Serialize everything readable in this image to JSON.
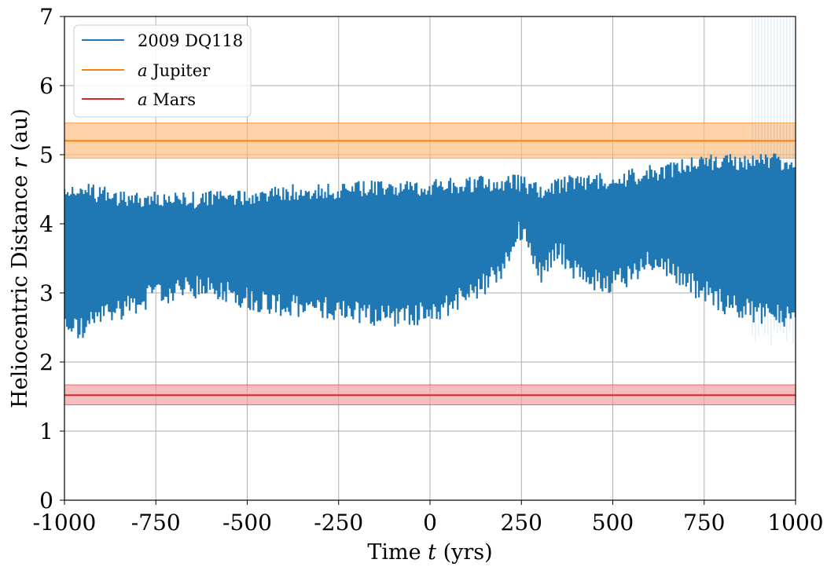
{
  "chart_data": {
    "type": "line",
    "title": "",
    "xlabel": "Time t (yrs)",
    "ylabel": "Heliocentric Distance r (au)",
    "xlim": [
      -1000,
      1000
    ],
    "ylim": [
      0,
      7
    ],
    "x_ticks": [
      -1000,
      -750,
      -500,
      -250,
      0,
      250,
      500,
      750,
      1000
    ],
    "x_tick_labels": [
      "-1000",
      "-750",
      "-500",
      "-250",
      "0",
      "250",
      "500",
      "750",
      "1000"
    ],
    "y_ticks": [
      0,
      1,
      2,
      3,
      4,
      5,
      6,
      7
    ],
    "y_tick_labels": [
      "0",
      "1",
      "2",
      "3",
      "4",
      "5",
      "6",
      "7"
    ],
    "grid": true,
    "legend_position": "top-left",
    "series": [
      {
        "name": "2009 DQ118",
        "color": "#1f77b4",
        "kind": "oscillation-envelope",
        "x": [
          -1000,
          -950,
          -900,
          -850,
          -800,
          -750,
          -700,
          -650,
          -600,
          -550,
          -500,
          -450,
          -400,
          -350,
          -300,
          -250,
          -200,
          -150,
          -100,
          -50,
          0,
          50,
          100,
          150,
          200,
          225,
          250,
          275,
          300,
          325,
          350,
          375,
          400,
          450,
          500,
          550,
          600,
          650,
          700,
          750,
          800,
          850,
          900,
          950,
          1000
        ],
        "max": [
          4.65,
          4.6,
          4.55,
          4.5,
          4.48,
          4.47,
          4.46,
          4.47,
          4.48,
          4.5,
          4.52,
          4.55,
          4.57,
          4.58,
          4.6,
          4.6,
          4.62,
          4.63,
          4.64,
          4.65,
          4.66,
          4.67,
          4.68,
          4.7,
          4.72,
          4.74,
          4.7,
          4.65,
          4.6,
          4.62,
          4.66,
          4.7,
          4.72,
          4.75,
          4.76,
          4.8,
          4.85,
          4.9,
          4.98,
          5.02,
          5.02,
          5.02,
          5.02,
          5.02,
          5.02
        ],
        "min": [
          2.35,
          2.3,
          2.5,
          2.6,
          2.7,
          2.8,
          2.85,
          2.9,
          2.9,
          2.85,
          2.75,
          2.7,
          2.65,
          2.6,
          2.6,
          2.6,
          2.55,
          2.5,
          2.5,
          2.5,
          2.55,
          2.65,
          2.8,
          2.95,
          3.2,
          3.55,
          3.75,
          3.5,
          3.1,
          3.25,
          3.5,
          3.3,
          3.1,
          3.0,
          3.0,
          3.1,
          3.3,
          3.2,
          3.0,
          2.85,
          2.7,
          2.6,
          2.55,
          2.5,
          2.45
        ]
      },
      {
        "name": "a Jupiter",
        "name_italic": "a",
        "name_rest": " Jupiter",
        "color": "#ff7f0e",
        "value": 5.2,
        "band": [
          4.95,
          5.46
        ],
        "band_color": "#ffbb78"
      },
      {
        "name": "a Mars",
        "name_italic": "a",
        "name_rest": " Mars",
        "color": "#d62728",
        "value": 1.52,
        "band": [
          1.38,
          1.67
        ],
        "band_color": "#f09a9b"
      }
    ],
    "annotations": [
      {
        "text": "diverging faint clone trajectories",
        "x_range": [
          880,
          1000
        ],
        "y_range": [
          2.2,
          7.0
        ]
      }
    ]
  }
}
